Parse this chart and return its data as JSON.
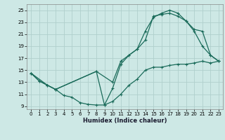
{
  "xlabel": "Humidex (Indice chaleur)",
  "bg_color": "#cde8e5",
  "grid_color": "#b0d0cc",
  "line_color": "#1a6b5a",
  "xlim": [
    -0.5,
    23.5
  ],
  "ylim": [
    8.5,
    26.0
  ],
  "xticks": [
    0,
    1,
    2,
    3,
    4,
    5,
    6,
    7,
    8,
    9,
    10,
    11,
    12,
    13,
    14,
    15,
    16,
    17,
    18,
    19,
    20,
    21,
    22,
    23
  ],
  "yticks": [
    9,
    11,
    13,
    15,
    17,
    19,
    21,
    23,
    25
  ],
  "curve1_x": [
    0,
    1,
    2,
    3,
    4,
    5,
    6,
    7,
    8,
    9,
    10,
    11,
    12,
    13,
    14,
    15,
    16,
    17,
    18,
    19,
    20,
    21,
    22,
    23
  ],
  "curve1_y": [
    14.5,
    13.2,
    12.5,
    11.8,
    10.8,
    10.5,
    9.6,
    9.3,
    9.2,
    9.2,
    9.8,
    11.0,
    12.5,
    13.5,
    15.0,
    15.5,
    15.5,
    15.8,
    16.0,
    16.0,
    16.2,
    16.5,
    16.2,
    16.5
  ],
  "curve2_x": [
    0,
    1,
    2,
    3,
    8,
    9,
    10,
    11,
    12,
    13,
    14,
    15,
    16,
    17,
    18,
    19,
    20,
    21,
    22,
    23
  ],
  "curve2_y": [
    14.5,
    13.2,
    12.5,
    11.8,
    14.8,
    9.2,
    12.0,
    16.0,
    17.5,
    18.5,
    21.5,
    23.8,
    24.5,
    25.0,
    24.5,
    23.2,
    21.5,
    19.0,
    17.5,
    16.5
  ],
  "curve3_x": [
    0,
    2,
    3,
    8,
    10,
    11,
    12,
    13,
    14,
    15,
    16,
    17,
    18,
    19,
    20,
    21,
    22,
    23
  ],
  "curve3_y": [
    14.5,
    12.5,
    11.8,
    14.8,
    13.0,
    16.5,
    17.5,
    18.5,
    20.0,
    24.0,
    24.3,
    24.5,
    24.0,
    23.2,
    21.8,
    21.5,
    17.5,
    16.5
  ]
}
